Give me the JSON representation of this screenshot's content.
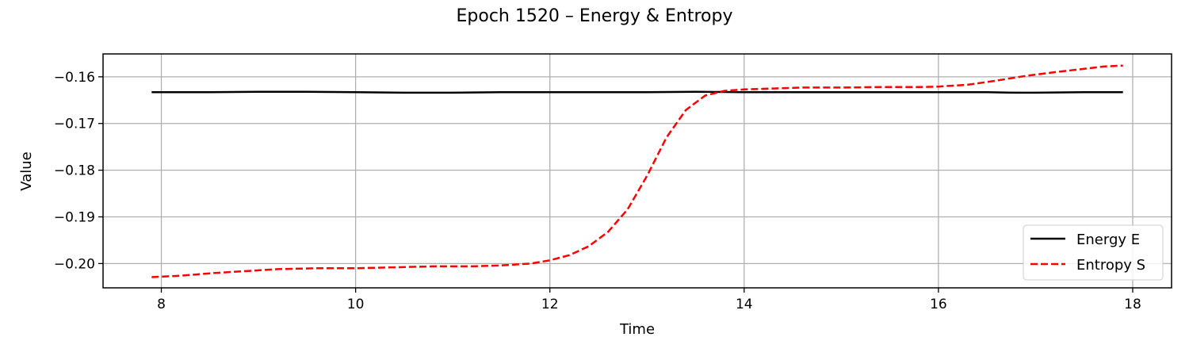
{
  "chart_data": {
    "type": "line",
    "title": "Epoch 1520 – Energy & Entropy",
    "xlabel": "Time",
    "ylabel": "Value",
    "xlim": [
      7.4,
      18.4
    ],
    "ylim": [
      -0.2052,
      -0.1551
    ],
    "xticks": [
      8,
      10,
      12,
      14,
      16,
      18
    ],
    "xtick_labels": [
      "8",
      "10",
      "12",
      "14",
      "16",
      "18"
    ],
    "yticks": [
      -0.2,
      -0.19,
      -0.18,
      -0.17,
      -0.16
    ],
    "ytick_labels": [
      "−0.20",
      "−0.19",
      "−0.18",
      "−0.17",
      "−0.16"
    ],
    "grid": true,
    "legend_position": "lower-right",
    "series": [
      {
        "name": "Energy E",
        "color": "#000000",
        "style": "solid",
        "x": [
          7.9,
          8.5,
          9.0,
          9.5,
          10.0,
          10.5,
          11.0,
          11.5,
          12.0,
          12.5,
          13.0,
          13.5,
          14.0,
          14.5,
          15.0,
          15.5,
          16.0,
          16.5,
          16.8,
          17.0,
          17.5,
          17.9
        ],
        "y": [
          -0.1633,
          -0.1633,
          -0.1632,
          -0.1632,
          -0.1633,
          -0.1634,
          -0.1634,
          -0.1633,
          -0.1633,
          -0.1633,
          -0.1633,
          -0.1632,
          -0.1633,
          -0.1633,
          -0.1633,
          -0.1633,
          -0.1633,
          -0.1633,
          -0.1634,
          -0.1634,
          -0.1633,
          -0.1633
        ]
      },
      {
        "name": "Entropy S",
        "color": "#ff0000",
        "style": "dashed",
        "x": [
          7.9,
          8.2,
          8.5,
          8.8,
          9.2,
          9.6,
          10.0,
          10.4,
          10.8,
          11.2,
          11.5,
          11.8,
          12.0,
          12.2,
          12.4,
          12.6,
          12.8,
          13.0,
          13.2,
          13.4,
          13.6,
          13.8,
          14.0,
          14.3,
          14.6,
          15.0,
          15.4,
          15.8,
          16.0,
          16.3,
          16.6,
          16.9,
          17.2,
          17.5,
          17.7,
          17.9
        ],
        "y": [
          -0.2029,
          -0.2026,
          -0.2021,
          -0.2017,
          -0.2012,
          -0.201,
          -0.201,
          -0.2008,
          -0.2006,
          -0.2006,
          -0.2004,
          -0.2,
          -0.1993,
          -0.1982,
          -0.1963,
          -0.1932,
          -0.1884,
          -0.1812,
          -0.173,
          -0.1671,
          -0.164,
          -0.163,
          -0.1627,
          -0.1625,
          -0.1623,
          -0.1623,
          -0.1622,
          -0.1622,
          -0.1621,
          -0.1617,
          -0.1608,
          -0.1598,
          -0.159,
          -0.1583,
          -0.1578,
          -0.1576
        ]
      }
    ]
  }
}
